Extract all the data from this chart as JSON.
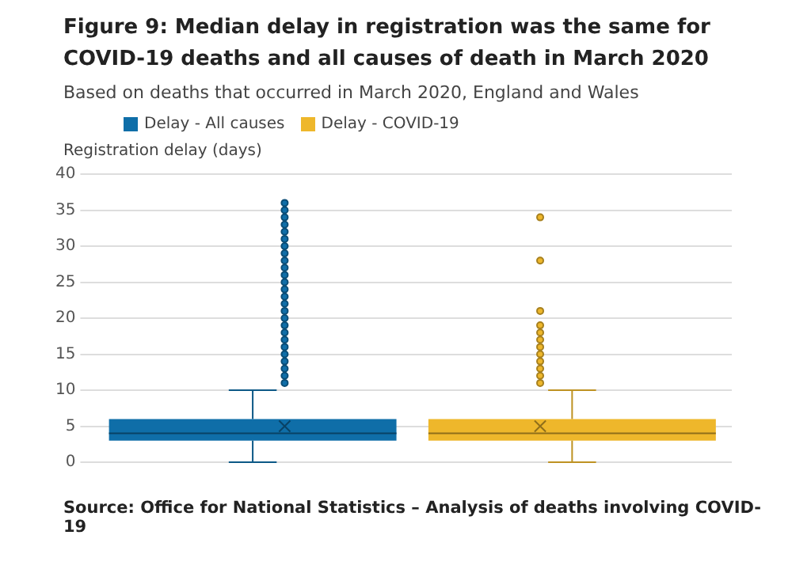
{
  "chart_data": {
    "type": "box",
    "title": "Figure 9: Median delay in registration was the same for COVID-19 deaths and all causes of death in March 2020",
    "subtitle": "Based on deaths that occurred in March 2020, England and Wales",
    "ylabel": "Registration delay (days)",
    "categories": [
      null,
      null
    ],
    "series": [
      {
        "name": "Delay - All causes",
        "color": "#0f6ea8",
        "boxes": [
          {
            "low": 0,
            "q1": 3,
            "median": 4,
            "q3": 6,
            "high": 10,
            "mean": 5,
            "outliers": [
              11,
              12,
              13,
              14,
              15,
              16,
              17,
              18,
              19,
              20,
              21,
              22,
              23,
              24,
              25,
              26,
              27,
              28,
              29,
              30,
              31,
              32,
              33,
              34,
              35,
              36
            ]
          },
          null
        ]
      },
      {
        "name": "Delay - COVID-19",
        "color": "#eeb72b",
        "boxes": [
          null,
          {
            "low": 0,
            "q1": 3,
            "median": 4,
            "q3": 6,
            "high": 10,
            "mean": 5,
            "outliers": [
              11,
              12,
              13,
              14,
              15,
              16,
              17,
              18,
              19,
              21,
              28,
              34
            ]
          }
        ]
      }
    ],
    "ylim": [
      0,
      40
    ],
    "yticks": [
      0,
      5,
      10,
      15,
      20,
      25,
      30,
      35,
      40
    ],
    "grid": "y",
    "legend": "top",
    "tick_labels": "y",
    "annotations": [
      "Source: Office for National Statistics – Analysis of deaths involving COVID-19"
    ]
  }
}
